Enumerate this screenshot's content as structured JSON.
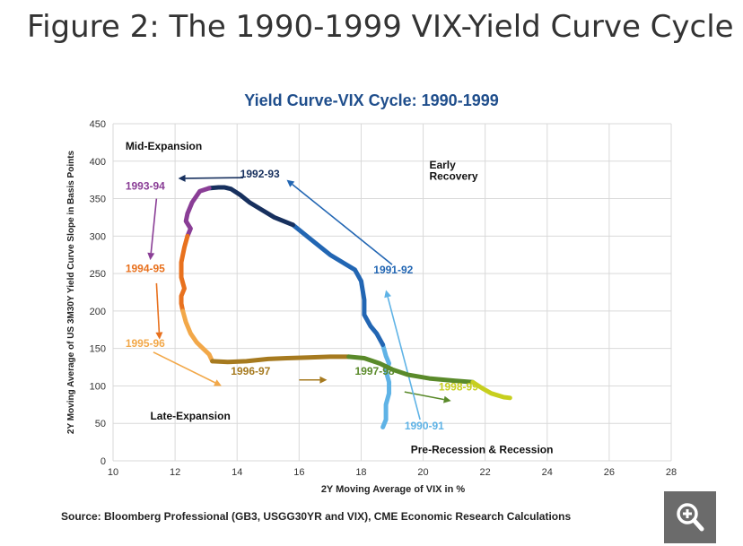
{
  "page": {
    "figure_title": "Figure 2: The 1990-1999 VIX-Yield Curve Cycle",
    "source": "Source: Bloomberg Professional (GB3, USGG30YR and VIX), CME Economic Research Calculations",
    "zoom_icon": "magnifier-plus-icon"
  },
  "chart_data": {
    "type": "line",
    "title": "Yield Curve-VIX Cycle: 1990-1999",
    "xlabel": "2Y Moving Average of VIX in %",
    "ylabel": "2Y Moving Average of US 3M30Y Yield Curve Slope in Basis Points",
    "xlim": [
      10,
      28
    ],
    "ylim": [
      0,
      450
    ],
    "xticks": [
      "10",
      "12",
      "14",
      "16",
      "18",
      "20",
      "22",
      "24",
      "26",
      "28"
    ],
    "yticks": [
      "0",
      "50",
      "100",
      "150",
      "200",
      "250",
      "300",
      "350",
      "400",
      "450"
    ],
    "grid": true,
    "legend": "none",
    "quadrant_labels": [
      {
        "text": "Mid-Expansion",
        "x": 10.4,
        "y": 415
      },
      {
        "text": "Early",
        "x": 20.2,
        "y": 390
      },
      {
        "text": "Recovery",
        "x": 20.2,
        "y": 375
      },
      {
        "text": "Late-Expansion",
        "x": 11.2,
        "y": 55
      },
      {
        "text": "Pre-Recession & Recession",
        "x": 19.6,
        "y": 10
      }
    ],
    "series": [
      {
        "name": "1990-91",
        "color": "#5fb3e6",
        "label_x": 19.4,
        "label_y": 42,
        "x": [
          18.7,
          18.8,
          18.8,
          18.9,
          18.9,
          18.8,
          18.9,
          18.8,
          18.7
        ],
        "y": [
          45,
          55,
          75,
          90,
          105,
          120,
          130,
          140,
          155
        ]
      },
      {
        "name": "1991-92",
        "color": "#2266b3",
        "label_x": 18.4,
        "label_y": 250,
        "x": [
          18.7,
          18.5,
          18.3,
          18.1,
          18.1,
          18.0,
          17.8,
          17.4,
          17.0,
          16.4,
          15.8
        ],
        "y": [
          155,
          170,
          180,
          195,
          215,
          240,
          255,
          265,
          275,
          295,
          315
        ]
      },
      {
        "name": "1992-93",
        "color": "#17305e",
        "label_x": 14.1,
        "label_y": 378,
        "x": [
          15.8,
          15.2,
          14.8,
          14.4,
          14.1,
          13.8,
          13.6,
          13.4,
          13.1
        ],
        "y": [
          315,
          325,
          335,
          345,
          355,
          363,
          365,
          365,
          364
        ]
      },
      {
        "name": "1993-94",
        "color": "#8a3e96",
        "label_x": 10.4,
        "label_y": 362,
        "x": [
          13.1,
          12.8,
          12.55,
          12.4,
          12.35,
          12.5,
          12.4
        ],
        "y": [
          364,
          360,
          345,
          330,
          320,
          310,
          300
        ]
      },
      {
        "name": "1994-95",
        "color": "#e8711e",
        "label_x": 10.4,
        "label_y": 252,
        "x": [
          12.4,
          12.3,
          12.2,
          12.2,
          12.3,
          12.2,
          12.2,
          12.25
        ],
        "y": [
          300,
          285,
          265,
          245,
          230,
          220,
          210,
          200
        ]
      },
      {
        "name": "1995-96",
        "color": "#f2a849",
        "label_x": 10.4,
        "label_y": 152,
        "x": [
          12.25,
          12.35,
          12.5,
          12.7,
          12.9,
          13.1,
          13.2
        ],
        "y": [
          200,
          185,
          170,
          158,
          150,
          142,
          133
        ]
      },
      {
        "name": "1996-97",
        "color": "#a67a1f",
        "label_x": 13.8,
        "label_y": 115,
        "x": [
          13.2,
          13.7,
          14.3,
          15.0,
          15.6,
          16.3,
          17.0,
          17.6
        ],
        "y": [
          133,
          132,
          133,
          136,
          137,
          138,
          139,
          139
        ]
      },
      {
        "name": "1997-98",
        "color": "#5a8a2a",
        "label_x": 17.8,
        "label_y": 115,
        "x": [
          17.6,
          18.1,
          18.6,
          19.0,
          19.5,
          20.2,
          21.0,
          21.6
        ],
        "y": [
          139,
          137,
          130,
          122,
          115,
          110,
          107,
          105
        ]
      },
      {
        "name": "1998-99",
        "color": "#c7cf1e",
        "label_x": 20.5,
        "label_y": 94,
        "x": [
          21.6,
          21.9,
          22.2,
          22.6,
          22.8
        ],
        "y": [
          105,
          97,
          90,
          85,
          84
        ]
      }
    ],
    "arrows": [
      {
        "color": "#17305e",
        "from": [
          14.2,
          378
        ],
        "to": [
          12.1,
          377
        ]
      },
      {
        "color": "#8a3e96",
        "from": [
          11.4,
          350
        ],
        "to": [
          11.2,
          268
        ]
      },
      {
        "color": "#e8711e",
        "from": [
          11.4,
          237
        ],
        "to": [
          11.5,
          162
        ]
      },
      {
        "color": "#f2a849",
        "from": [
          11.3,
          145
        ],
        "to": [
          13.5,
          100
        ]
      },
      {
        "color": "#a67a1f",
        "from": [
          16.0,
          108
        ],
        "to": [
          16.9,
          108
        ]
      },
      {
        "color": "#5a8a2a",
        "from": [
          19.4,
          92
        ],
        "to": [
          20.9,
          80
        ]
      },
      {
        "color": "#2266b3",
        "from": [
          19.0,
          262
        ],
        "to": [
          15.6,
          375
        ]
      },
      {
        "color": "#5fb3e6",
        "from": [
          19.9,
          55
        ],
        "to": [
          18.8,
          228
        ]
      }
    ]
  }
}
